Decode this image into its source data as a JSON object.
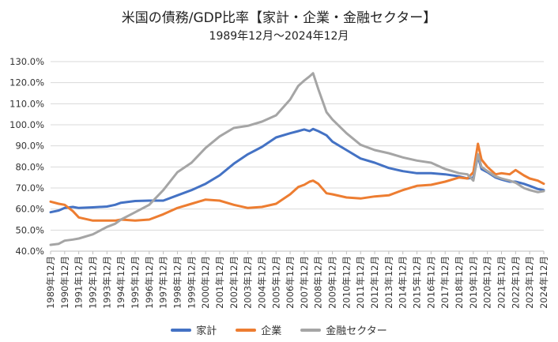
{
  "chart_data": {
    "type": "line",
    "title": "米国の債務/GDP比率【家計・企業・金融セクター】",
    "subtitle": "1989年12月～2024年12月",
    "xlabel": "",
    "ylabel": "",
    "ylim": [
      40,
      130
    ],
    "y_ticks": [
      "40.0%",
      "50.0%",
      "60.0%",
      "70.0%",
      "80.0%",
      "90.0%",
      "100.0%",
      "110.0%",
      "120.0%",
      "130.0%"
    ],
    "y_tick_values": [
      40,
      50,
      60,
      70,
      80,
      90,
      100,
      110,
      120,
      130
    ],
    "categories": [
      "1989年12月",
      "1990年12月",
      "1991年12月",
      "1992年12月",
      "1993年12月",
      "1994年12月",
      "1995年12月",
      "1996年12月",
      "1997年12月",
      "1998年12月",
      "1999年12月",
      "2000年12月",
      "2001年12月",
      "2002年12月",
      "2003年12月",
      "2004年12月",
      "2005年12月",
      "2006年12月",
      "2007年12月",
      "2008年12月",
      "2009年12月",
      "2010年12月",
      "2011年12月",
      "2012年12月",
      "2013年12月",
      "2014年12月",
      "2015年12月",
      "2016年12月",
      "2017年12月",
      "2018年12月",
      "2019年12月",
      "2020年12月",
      "2021年12月",
      "2022年12月",
      "2023年12月",
      "2024年12月"
    ],
    "x": [
      1989.92,
      1990.5,
      1990.92,
      1991.5,
      1991.92,
      1992.92,
      1993.92,
      1994.5,
      1994.92,
      1995.92,
      1996.92,
      1997.92,
      1998.92,
      1999.92,
      2000.92,
      2001.92,
      2002.92,
      2003.92,
      2004.92,
      2005.92,
      2006.92,
      2007.5,
      2007.92,
      2008.3,
      2008.55,
      2008.92,
      2009.5,
      2009.92,
      2010.92,
      2011.92,
      2012.92,
      2013.92,
      2014.92,
      2015.92,
      2016.92,
      2017.92,
      2018.92,
      2019.5,
      2019.92,
      2020.25,
      2020.5,
      2020.92,
      2021.5,
      2021.92,
      2022.5,
      2022.92,
      2023.5,
      2023.92,
      2024.5,
      2024.92
    ],
    "series": [
      {
        "name": "家計",
        "color": "#4472C4",
        "values": [
          58.5,
          59.3,
          60.5,
          61.0,
          60.5,
          60.8,
          61.2,
          62.0,
          63.0,
          63.8,
          64.0,
          64.0,
          66.5,
          69.0,
          72.0,
          76.0,
          81.5,
          86.0,
          89.5,
          94.0,
          96.0,
          97.0,
          97.8,
          97.0,
          98.0,
          97.0,
          95.0,
          92.0,
          88.0,
          84.0,
          82.0,
          79.5,
          78.0,
          77.0,
          77.0,
          76.5,
          75.5,
          74.5,
          75.0,
          85.0,
          79.0,
          77.5,
          75.0,
          74.0,
          73.0,
          73.0,
          72.0,
          71.0,
          69.5,
          69.0
        ]
      },
      {
        "name": "企業",
        "color": "#ED7D31",
        "values": [
          63.5,
          62.5,
          62.0,
          59.0,
          56.0,
          54.5,
          54.5,
          54.5,
          55.0,
          54.5,
          55.0,
          57.5,
          60.5,
          62.5,
          64.5,
          64.0,
          62.0,
          60.5,
          61.0,
          62.5,
          67.0,
          70.5,
          71.5,
          73.0,
          73.5,
          72.0,
          67.5,
          67.0,
          65.5,
          65.0,
          66.0,
          66.5,
          69.0,
          71.0,
          71.5,
          73.0,
          75.0,
          74.5,
          77.5,
          91.0,
          83.5,
          80.0,
          76.5,
          77.0,
          76.5,
          78.5,
          76.0,
          74.5,
          73.5,
          72.0
        ]
      },
      {
        "name": "金融セクター",
        "color": "#A5A5A5",
        "values": [
          43.0,
          43.5,
          45.0,
          45.5,
          46.0,
          48.0,
          51.5,
          53.0,
          55.0,
          58.5,
          62.0,
          69.0,
          77.5,
          82.0,
          89.0,
          94.5,
          98.5,
          99.5,
          101.5,
          104.5,
          112.0,
          118.5,
          121.0,
          123.0,
          124.5,
          117.0,
          106.0,
          102.5,
          96.0,
          90.5,
          88.0,
          86.5,
          84.5,
          83.0,
          82.0,
          79.0,
          77.0,
          76.5,
          73.5,
          86.0,
          80.0,
          78.0,
          75.5,
          74.5,
          73.5,
          72.5,
          70.0,
          69.0,
          68.0,
          68.5
        ]
      }
    ],
    "legend": [
      "家計",
      "企業",
      "金融セクター"
    ],
    "legend_position": "bottom",
    "grid": true
  }
}
